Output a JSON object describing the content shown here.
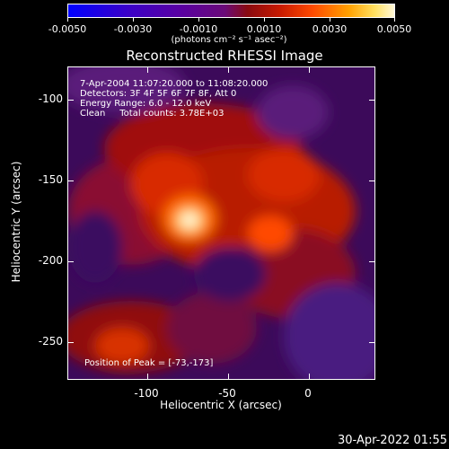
{
  "colorbar": {
    "tick_labels": [
      "-0.0050",
      "-0.0030",
      "-0.0010",
      "0.0010",
      "0.0030",
      "0.0050"
    ],
    "units": "(photons cm⁻² s⁻¹ asec⁻²)",
    "range": [
      -0.005,
      0.005
    ]
  },
  "plot": {
    "title": "Reconstructed RHESSI Image",
    "annotations": [
      "7-Apr-2004 11:07:20.000 to 11:08:20.000",
      "Detectors: 3F 4F 5F 6F 7F 8F, Att 0",
      "Energy Range: 6.0 - 12.0 keV",
      "Clean     Total counts: 3.78E+03"
    ],
    "peak_label": "Position of Peak = [-73,-173]",
    "xlabel": "Heliocentric X (arcsec)",
    "ylabel": "Heliocentric Y (arcsec)",
    "xticks": [
      "-100",
      "-50",
      "0"
    ],
    "yticks": [
      "-100",
      "-150",
      "-200",
      "-250"
    ]
  },
  "timestamp": "30-Apr-2022 01:55"
}
